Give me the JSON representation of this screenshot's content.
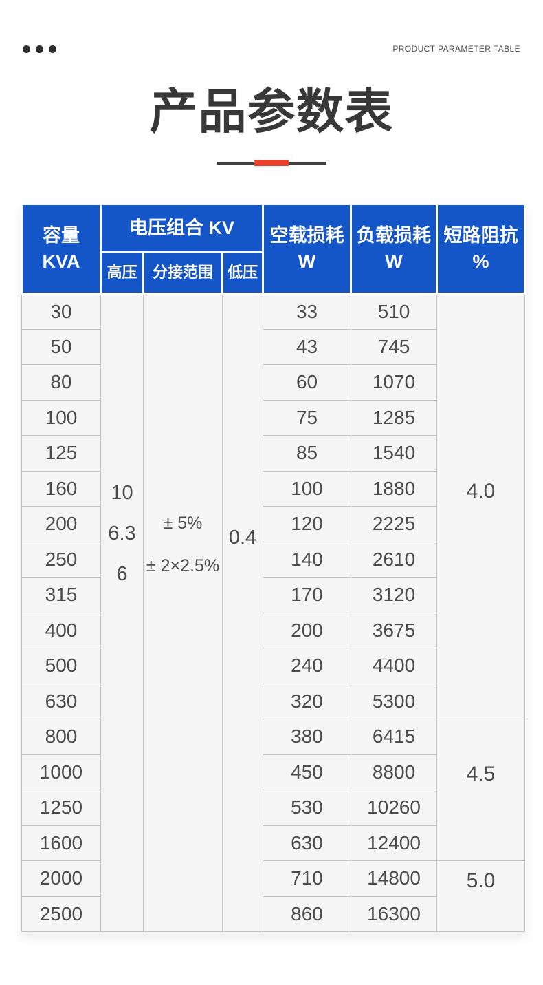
{
  "colors": {
    "header_blue": "#1455c7",
    "accent_red": "#ea4228"
  },
  "header": {
    "eyebrow": "PRODUCT PARAMETER TABLE",
    "title": "产品参数表"
  },
  "table": {
    "headers": {
      "capacity": [
        "容量",
        "KVA"
      ],
      "voltage_combo": "电压组合 KV",
      "high_voltage": "高压",
      "tap_range": "分接范围",
      "low_voltage": "低压",
      "no_load_loss": [
        "空载损耗",
        "W"
      ],
      "load_loss": [
        "负载损耗",
        "W"
      ],
      "impedance": [
        "短路阻抗",
        "%"
      ]
    },
    "voltage_values": {
      "high_voltage": [
        "10",
        "6.3",
        "6"
      ],
      "tap_range": [
        "± 5%",
        "± 2×2.5%"
      ],
      "low_voltage": "0.4"
    },
    "rows": [
      {
        "kva": "30",
        "no_load": "33",
        "load": "510"
      },
      {
        "kva": "50",
        "no_load": "43",
        "load": "745"
      },
      {
        "kva": "80",
        "no_load": "60",
        "load": "1070"
      },
      {
        "kva": "100",
        "no_load": "75",
        "load": "1285"
      },
      {
        "kva": "125",
        "no_load": "85",
        "load": "1540"
      },
      {
        "kva": "160",
        "no_load": "100",
        "load": "1880"
      },
      {
        "kva": "200",
        "no_load": "120",
        "load": "2225"
      },
      {
        "kva": "250",
        "no_load": "140",
        "load": "2610"
      },
      {
        "kva": "315",
        "no_load": "170",
        "load": "3120"
      },
      {
        "kva": "400",
        "no_load": "200",
        "load": "3675"
      },
      {
        "kva": "500",
        "no_load": "240",
        "load": "4400"
      },
      {
        "kva": "630",
        "no_load": "320",
        "load": "5300"
      },
      {
        "kva": "800",
        "no_load": "380",
        "load": "6415"
      },
      {
        "kva": "1000",
        "no_load": "450",
        "load": "8800"
      },
      {
        "kva": "1250",
        "no_load": "530",
        "load": "10260"
      },
      {
        "kva": "1600",
        "no_load": "630",
        "load": "12400"
      },
      {
        "kva": "2000",
        "no_load": "710",
        "load": "14800"
      },
      {
        "kva": "2500",
        "no_load": "860",
        "load": "16300"
      }
    ],
    "impedance_groups": [
      {
        "value": "4.0",
        "row_span": 12
      },
      {
        "value": "4.5",
        "row_span": 4
      },
      {
        "value": "5.0",
        "row_span": 2
      }
    ]
  }
}
